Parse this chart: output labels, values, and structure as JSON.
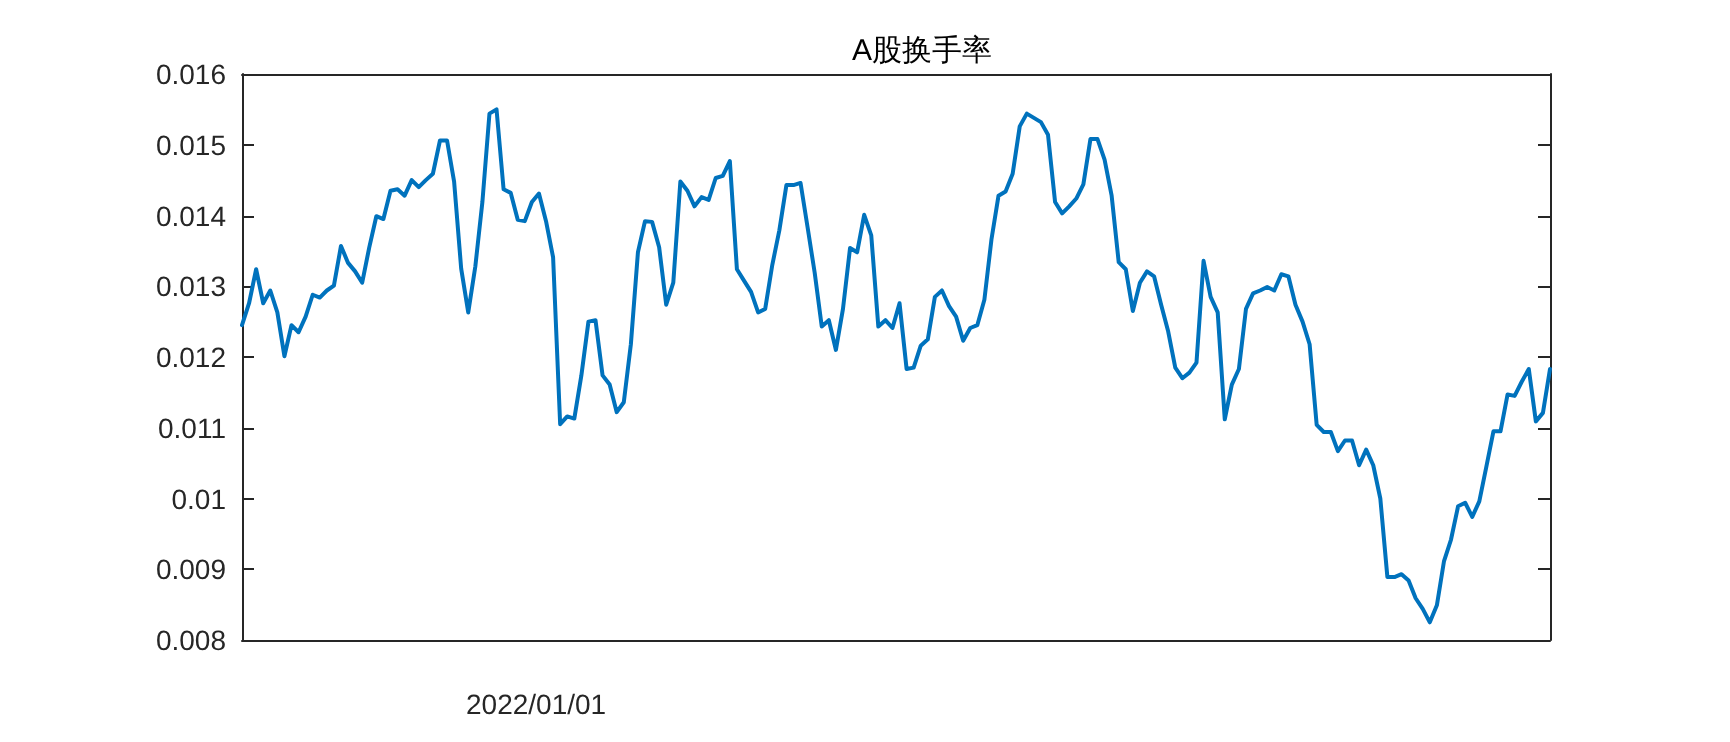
{
  "chart_data": {
    "type": "line",
    "title": "A股换手率",
    "annotations": [
      "2022/01/01"
    ],
    "categories": [
      null,
      null,
      null,
      null,
      null,
      null,
      null,
      null,
      null,
      null,
      null,
      null,
      null,
      null,
      null,
      null,
      null,
      null,
      null,
      null,
      null,
      null,
      null,
      null,
      null,
      null,
      null,
      null,
      null,
      null,
      null,
      null,
      null,
      null,
      null,
      null,
      null,
      null,
      null,
      null,
      null,
      null,
      null,
      null,
      null,
      null,
      null,
      null,
      null,
      null,
      null,
      null,
      null,
      null,
      null,
      null,
      null,
      null,
      null,
      null,
      null,
      null,
      null,
      null,
      null,
      null,
      null,
      null,
      null,
      null,
      null,
      null,
      null,
      null,
      null,
      null,
      null,
      null,
      null,
      null,
      null,
      null,
      null,
      null,
      null,
      null,
      null,
      null,
      null,
      null,
      null,
      null,
      null,
      null,
      null,
      null,
      null,
      null,
      null,
      null,
      null,
      null,
      null,
      null,
      null,
      null,
      null,
      null,
      null,
      null,
      null,
      null,
      null,
      null,
      null,
      null,
      null,
      null,
      null,
      null,
      null,
      null,
      null,
      null,
      null,
      null,
      null,
      null,
      null,
      null,
      null,
      null,
      null,
      null,
      null,
      null,
      null,
      null,
      null,
      null,
      null,
      null,
      null,
      null,
      null,
      null,
      null,
      null,
      null,
      null,
      null,
      null,
      null,
      null,
      null,
      null,
      null,
      null,
      null,
      null,
      null,
      null,
      null,
      null,
      null,
      null,
      null,
      null,
      null,
      null,
      null,
      null,
      null,
      null,
      null,
      null,
      null,
      null,
      null,
      null,
      null,
      null,
      null,
      null,
      null,
      null
    ],
    "ylim": [
      0.008,
      0.016
    ],
    "yticks": [
      0.008,
      0.009,
      0.01,
      0.011,
      0.012,
      0.013,
      0.014,
      0.015,
      0.016
    ],
    "grid": false,
    "marker": "none",
    "line_style": "solid",
    "series": [
      {
        "color": "#0072bd",
        "values": [
          0.01245,
          0.01276,
          0.01324,
          0.01276,
          0.01294,
          0.01263,
          0.01201,
          0.01245,
          0.01235,
          0.01257,
          0.01288,
          0.01284,
          0.01294,
          0.01301,
          0.01357,
          0.01333,
          0.01321,
          0.01305,
          0.01355,
          0.01399,
          0.01395,
          0.01435,
          0.01437,
          0.01428,
          0.0145,
          0.0144,
          0.0145,
          0.01459,
          0.01506,
          0.01506,
          0.01448,
          0.01325,
          0.01263,
          0.01328,
          0.01419,
          0.01544,
          0.0155,
          0.01437,
          0.01432,
          0.01394,
          0.01392,
          0.01419,
          0.01431,
          0.01392,
          0.01341,
          0.01105,
          0.01116,
          0.01113,
          0.01174,
          0.0125,
          0.01252,
          0.01174,
          0.01161,
          0.01122,
          0.01136,
          0.01218,
          0.01348,
          0.01392,
          0.01391,
          0.01355,
          0.01274,
          0.01305,
          0.01448,
          0.01435,
          0.01413,
          0.01426,
          0.01422,
          0.01453,
          0.01456,
          0.01477,
          0.01324,
          0.01308,
          0.01292,
          0.01263,
          0.01268,
          0.0133,
          0.01379,
          0.01443,
          0.01443,
          0.01446,
          0.01383,
          0.01319,
          0.01243,
          0.01252,
          0.0121,
          0.01268,
          0.01354,
          0.01348,
          0.01401,
          0.01372,
          0.01243,
          0.01252,
          0.01241,
          0.01276,
          0.01183,
          0.01185,
          0.01216,
          0.01225,
          0.01285,
          0.01294,
          0.01272,
          0.01257,
          0.01223,
          0.01241,
          0.01245,
          0.01281,
          0.01366,
          0.01428,
          0.01434,
          0.01459,
          0.01526,
          0.01544,
          0.01538,
          0.01532,
          0.01514,
          0.01419,
          0.01403,
          0.01413,
          0.01424,
          0.01444,
          0.01508,
          0.01508,
          0.01479,
          0.01428,
          0.01334,
          0.01324,
          0.01265,
          0.01305,
          0.01321,
          0.01314,
          0.01274,
          0.01236,
          0.01185,
          0.0117,
          0.01178,
          0.01192,
          0.01336,
          0.01285,
          0.01263,
          0.01112,
          0.01161,
          0.01183,
          0.01268,
          0.0129,
          0.01294,
          0.01299,
          0.01294,
          0.01317,
          0.01314,
          0.01274,
          0.0125,
          0.01218,
          0.01104,
          0.01094,
          0.01094,
          0.01067,
          0.01082,
          0.01082,
          0.01047,
          0.01069,
          0.01047,
          0.01,
          0.00889,
          0.00889,
          0.00893,
          0.00884,
          0.00859,
          0.00844,
          0.00825,
          0.00849,
          0.00911,
          0.00942,
          0.00989,
          0.00994,
          0.00974,
          0.00996,
          0.01045,
          0.01095,
          0.01095,
          0.01147,
          0.01145,
          0.01165,
          0.01183,
          0.01109,
          0.01121,
          0.01183
        ]
      }
    ]
  }
}
